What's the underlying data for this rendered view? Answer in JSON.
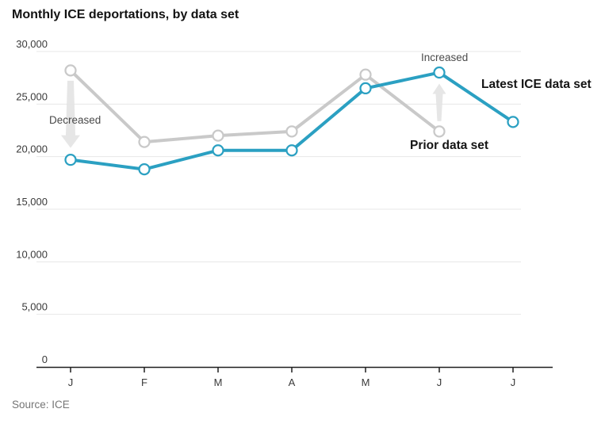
{
  "title": "Monthly ICE deportations, by data set",
  "source": "Source: ICE",
  "colors": {
    "latest": "#2ba0c2",
    "prior": "#c9c9c9",
    "grid": "#e7e7e7",
    "axis": "#1f1f1f",
    "arrow": "#e3e3e3"
  },
  "chart_data": {
    "type": "line",
    "title": "Monthly ICE deportations, by data set",
    "x_labels": [
      "J",
      "F",
      "M",
      "A",
      "M",
      "J",
      "J"
    ],
    "ylim": [
      0,
      30000
    ],
    "y_ticks": [
      0,
      5000,
      10000,
      15000,
      20000,
      25000,
      30000
    ],
    "grid": true,
    "legend_position": "inline-right",
    "series": [
      {
        "name": "Prior data set",
        "color_key": "prior",
        "values": [
          28200,
          21400,
          22000,
          22400,
          27800,
          22400,
          null
        ]
      },
      {
        "name": "Latest ICE data set",
        "color_key": "latest",
        "values": [
          19700,
          18800,
          20600,
          20600,
          26500,
          28000,
          23300
        ]
      }
    ],
    "annotations": {
      "decreased": {
        "text": "Decreased",
        "month_index": 0,
        "direction": "down"
      },
      "increased": {
        "text": "Increased",
        "month_index": 5,
        "direction": "up"
      },
      "latest_label": "Latest ICE data set",
      "prior_label": "Prior data set"
    }
  }
}
